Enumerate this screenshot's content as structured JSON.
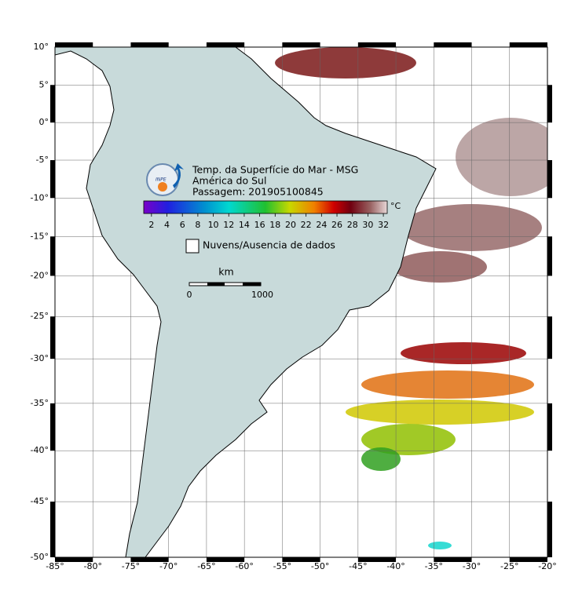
{
  "map": {
    "xlim": [
      -85,
      -20
    ],
    "ylim": [
      -50,
      10
    ],
    "lon_ticks": [
      {
        "value": -85,
        "label": "-85°"
      },
      {
        "value": -80,
        "label": "-80°"
      },
      {
        "value": -75,
        "label": "-75°"
      },
      {
        "value": -70,
        "label": "-70°"
      },
      {
        "value": -65,
        "label": "-65°"
      },
      {
        "value": -60,
        "label": "-60°"
      },
      {
        "value": -55,
        "label": "-55°"
      },
      {
        "value": -50,
        "label": "-50°"
      },
      {
        "value": -45,
        "label": "-45°"
      },
      {
        "value": -40,
        "label": "-40°"
      },
      {
        "value": -35,
        "label": "-35°"
      },
      {
        "value": -30,
        "label": "-30°"
      },
      {
        "value": -25,
        "label": "-25°"
      },
      {
        "value": -20,
        "label": "-20°"
      }
    ],
    "lat_ticks": [
      {
        "value": 10,
        "label": "10°"
      },
      {
        "value": 5,
        "label": "5°"
      },
      {
        "value": 0,
        "label": "0°"
      },
      {
        "value": -5,
        "label": "-5°"
      },
      {
        "value": -10,
        "label": "-10°"
      },
      {
        "value": -15,
        "label": "-15°"
      },
      {
        "value": -20,
        "label": "-20°"
      },
      {
        "value": -25,
        "label": "-25°"
      },
      {
        "value": -30,
        "label": "-30°"
      },
      {
        "value": -35,
        "label": "-35°"
      },
      {
        "value": -40,
        "label": "-40°"
      },
      {
        "value": -45,
        "label": "-45°"
      },
      {
        "value": -50,
        "label": "-50°"
      }
    ]
  },
  "legend": {
    "logo_text": "INPE",
    "title": [
      "Temp. da Superfície do Mar - MSG",
      "América do Sul",
      "Passagem: 201905100845"
    ],
    "colorbar": {
      "range": [
        1,
        32.5
      ],
      "ticks": [
        2,
        4,
        6,
        8,
        10,
        12,
        14,
        16,
        18,
        20,
        22,
        24,
        26,
        28,
        30,
        32
      ],
      "unit": "°C"
    },
    "cloud_label": "Nuvens/Ausencia de dados",
    "scale": {
      "unit": "km",
      "labels": [
        "0",
        "1000"
      ]
    }
  }
}
